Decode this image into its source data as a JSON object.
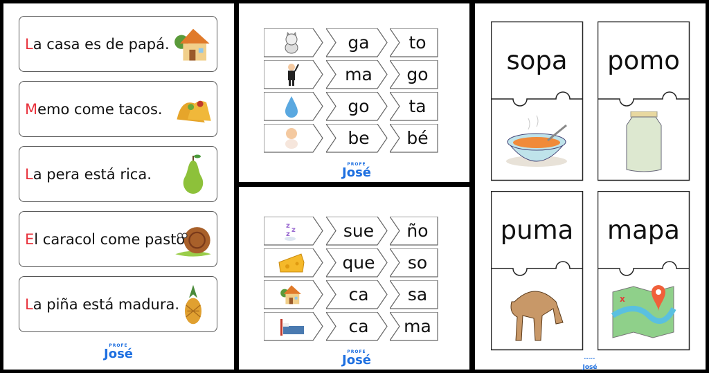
{
  "brand": {
    "profe": "PROFE",
    "jose": "José",
    "color": "#1d6fe0"
  },
  "sentences": [
    {
      "first": "L",
      "rest": "a casa es de papá.",
      "icon": "house-icon"
    },
    {
      "first": "M",
      "rest": "emo come tacos.",
      "icon": "tacos-icon"
    },
    {
      "first": "L",
      "rest": "a pera está rica.",
      "icon": "pear-icon"
    },
    {
      "first": "E",
      "rest": "l caracol come pasto.",
      "icon": "snail-icon"
    },
    {
      "first": "L",
      "rest": "a piña está madura.",
      "icon": "pineapple-icon"
    }
  ],
  "accent_color": "#e8323c",
  "syllable_puzzles_top": [
    {
      "icon": "cat-icon",
      "s1": "ga",
      "s2": "to"
    },
    {
      "icon": "magician-icon",
      "s1": "ma",
      "s2": "go"
    },
    {
      "icon": "water-drop-icon",
      "s1": "go",
      "s2": "ta"
    },
    {
      "icon": "baby-icon",
      "s1": "be",
      "s2": "bé"
    }
  ],
  "syllable_puzzles_bottom": [
    {
      "icon": "sleep-zzz-icon",
      "s1": "sue",
      "s2": "ño"
    },
    {
      "icon": "cheese-icon",
      "s1": "que",
      "s2": "so"
    },
    {
      "icon": "house-icon",
      "s1": "ca",
      "s2": "sa"
    },
    {
      "icon": "bed-icon",
      "s1": "ca",
      "s2": "ma"
    }
  ],
  "word_cards": [
    {
      "word": "sopa",
      "icon": "soup-bowl-icon"
    },
    {
      "word": "pomo",
      "icon": "jar-icon"
    },
    {
      "word": "puma",
      "icon": "puma-icon"
    },
    {
      "word": "mapa",
      "icon": "map-icon"
    }
  ]
}
